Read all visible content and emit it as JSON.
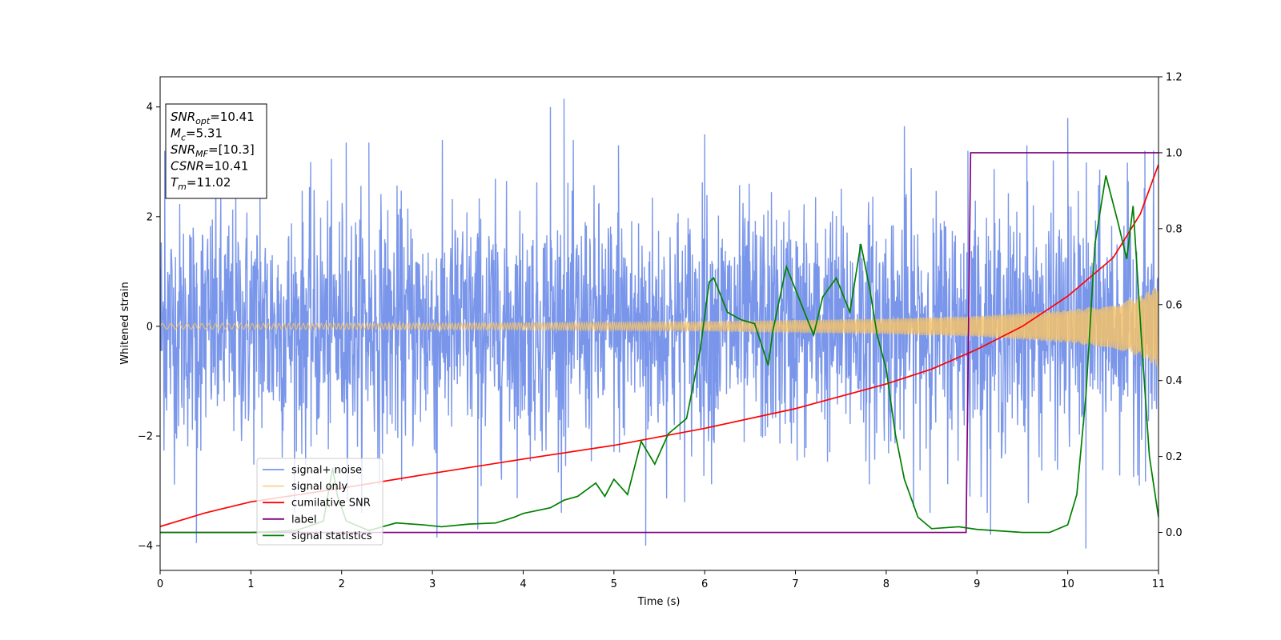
{
  "chart_data": {
    "type": "line",
    "xlabel": "Time (s)",
    "ylabel": "Whitened strain",
    "xlim": [
      0,
      11
    ],
    "ylim": [
      -4.45,
      4.55
    ],
    "y2lim": [
      -0.1,
      1.2
    ],
    "x_ticks": [
      0,
      1,
      2,
      3,
      4,
      5,
      6,
      7,
      8,
      9,
      10,
      11
    ],
    "x_tick_labels": [
      "0",
      "1",
      "2",
      "3",
      "4",
      "5",
      "6",
      "7",
      "8",
      "9",
      "10",
      "11"
    ],
    "y_ticks": [
      -4,
      -2,
      0,
      2,
      4
    ],
    "y_tick_labels": [
      "−4",
      "−2",
      "0",
      "2",
      "4"
    ],
    "y2_ticks": [
      0.0,
      0.2,
      0.4,
      0.6,
      0.8,
      1.0,
      1.2
    ],
    "y2_tick_labels": [
      "0.0",
      "0.2",
      "0.4",
      "0.6",
      "0.8",
      "1.0",
      "1.2"
    ],
    "grid": false,
    "legend_position": "lower-left",
    "annotation": {
      "lines": [
        {
          "base": "SNR",
          "sub": "opt",
          "value": "=10.41"
        },
        {
          "base": "M",
          "sub": "c",
          "value": "=5.31"
        },
        {
          "base": "SNR",
          "sub": "MF",
          "value": "=[10.3]"
        },
        {
          "base": "CSNR",
          "sub": "",
          "value": "=10.41"
        },
        {
          "base": "T",
          "sub": "m",
          "value": "=11.02"
        }
      ]
    },
    "series": [
      {
        "name": "signal+ noise",
        "axis": "left",
        "color": "#4169e1",
        "kind": "noise",
        "sigma": 1.1,
        "samples": 2600,
        "peak_points": [
          [
            0.05,
            3.2
          ],
          [
            0.4,
            -3.95
          ],
          [
            1.1,
            2.7
          ],
          [
            2.05,
            3.35
          ],
          [
            2.3,
            3.35
          ],
          [
            3.05,
            -3.85
          ],
          [
            3.5,
            -3.7
          ],
          [
            4.3,
            4.0
          ],
          [
            4.45,
            4.15
          ],
          [
            5.05,
            3.3
          ],
          [
            5.35,
            -4.0
          ],
          [
            6.0,
            3.5
          ],
          [
            8.2,
            3.65
          ],
          [
            8.9,
            3.2
          ],
          [
            9.15,
            -3.8
          ],
          [
            9.55,
            3.3
          ],
          [
            10.0,
            3.8
          ],
          [
            10.2,
            -4.05
          ],
          [
            10.85,
            3.2
          ]
        ]
      },
      {
        "name": "signal only",
        "axis": "left",
        "color": "#f5c36b",
        "kind": "chirp",
        "amplitude_points": [
          [
            0,
            0.05
          ],
          [
            2,
            0.055
          ],
          [
            4,
            0.065
          ],
          [
            6,
            0.09
          ],
          [
            8,
            0.14
          ],
          [
            9,
            0.19
          ],
          [
            10,
            0.3
          ],
          [
            10.5,
            0.4
          ],
          [
            10.8,
            0.55
          ],
          [
            11,
            0.75
          ]
        ]
      },
      {
        "name": "cumilative SNR",
        "axis": "left",
        "color": "#ff0000",
        "kind": "line",
        "points": [
          [
            0,
            -3.65
          ],
          [
            0.5,
            -3.4
          ],
          [
            1,
            -3.2
          ],
          [
            2,
            -2.95
          ],
          [
            3,
            -2.68
          ],
          [
            4,
            -2.42
          ],
          [
            5,
            -2.17
          ],
          [
            6,
            -1.86
          ],
          [
            7,
            -1.5
          ],
          [
            8,
            -1.05
          ],
          [
            8.5,
            -0.78
          ],
          [
            9,
            -0.42
          ],
          [
            9.5,
            0.0
          ],
          [
            10,
            0.55
          ],
          [
            10.5,
            1.25
          ],
          [
            10.8,
            2.05
          ],
          [
            11,
            2.95
          ]
        ]
      },
      {
        "name": "label",
        "axis": "right",
        "color": "#800080",
        "kind": "line",
        "points": [
          [
            0,
            0.0
          ],
          [
            8.88,
            0.0
          ],
          [
            8.93,
            1.0
          ],
          [
            11,
            1.0
          ]
        ]
      },
      {
        "name": "signal statistics",
        "axis": "right",
        "color": "#008000",
        "kind": "line",
        "points": [
          [
            0,
            0.0
          ],
          [
            1.0,
            0.0
          ],
          [
            1.5,
            0.005
          ],
          [
            1.8,
            0.03
          ],
          [
            1.9,
            0.17
          ],
          [
            1.95,
            0.1
          ],
          [
            2.05,
            0.03
          ],
          [
            2.3,
            0.005
          ],
          [
            2.6,
            0.025
          ],
          [
            2.9,
            0.02
          ],
          [
            3.1,
            0.015
          ],
          [
            3.4,
            0.022
          ],
          [
            3.7,
            0.025
          ],
          [
            3.9,
            0.04
          ],
          [
            4.0,
            0.05
          ],
          [
            4.1,
            0.055
          ],
          [
            4.3,
            0.065
          ],
          [
            4.45,
            0.085
          ],
          [
            4.6,
            0.095
          ],
          [
            4.8,
            0.13
          ],
          [
            4.9,
            0.095
          ],
          [
            5.0,
            0.14
          ],
          [
            5.15,
            0.1
          ],
          [
            5.3,
            0.24
          ],
          [
            5.45,
            0.18
          ],
          [
            5.6,
            0.26
          ],
          [
            5.8,
            0.3
          ],
          [
            5.95,
            0.48
          ],
          [
            6.05,
            0.66
          ],
          [
            6.1,
            0.67
          ],
          [
            6.25,
            0.58
          ],
          [
            6.4,
            0.56
          ],
          [
            6.55,
            0.55
          ],
          [
            6.7,
            0.44
          ],
          [
            6.75,
            0.53
          ],
          [
            6.9,
            0.7
          ],
          [
            7.0,
            0.64
          ],
          [
            7.1,
            0.58
          ],
          [
            7.2,
            0.52
          ],
          [
            7.3,
            0.62
          ],
          [
            7.45,
            0.67
          ],
          [
            7.6,
            0.58
          ],
          [
            7.72,
            0.76
          ],
          [
            7.82,
            0.64
          ],
          [
            7.9,
            0.52
          ],
          [
            8.0,
            0.43
          ],
          [
            8.1,
            0.26
          ],
          [
            8.2,
            0.14
          ],
          [
            8.35,
            0.04
          ],
          [
            8.5,
            0.01
          ],
          [
            8.8,
            0.015
          ],
          [
            9.0,
            0.008
          ],
          [
            9.5,
            0.0
          ],
          [
            9.8,
            0.0
          ],
          [
            10.0,
            0.02
          ],
          [
            10.1,
            0.1
          ],
          [
            10.2,
            0.36
          ],
          [
            10.3,
            0.76
          ],
          [
            10.42,
            0.94
          ],
          [
            10.55,
            0.82
          ],
          [
            10.65,
            0.72
          ],
          [
            10.72,
            0.86
          ],
          [
            10.82,
            0.48
          ],
          [
            10.9,
            0.2
          ],
          [
            11.0,
            0.04
          ]
        ]
      }
    ]
  }
}
